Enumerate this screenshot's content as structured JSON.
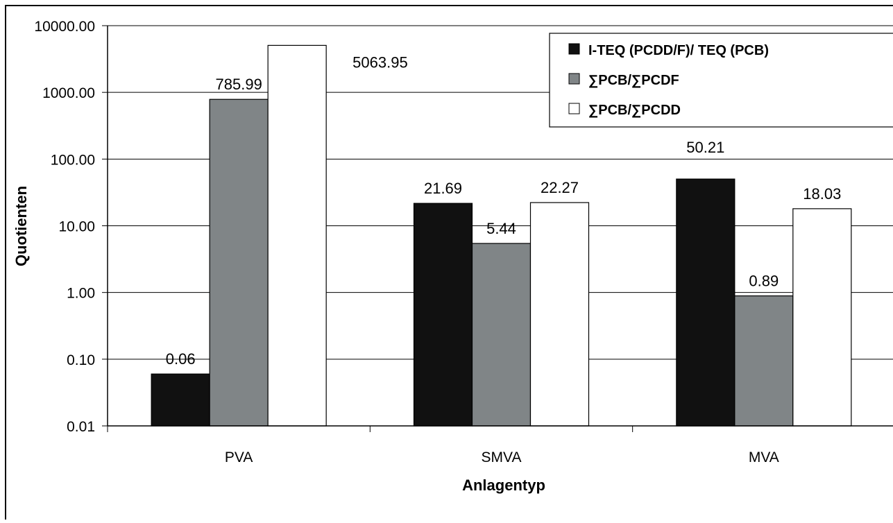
{
  "chart_data": {
    "type": "bar",
    "scale": "log",
    "title": "",
    "xlabel": "Anlagentyp",
    "ylabel": "Quotienten",
    "ylim": [
      0.01,
      10000
    ],
    "yticks": [
      "10000.00",
      "1000.00",
      "100.00",
      "10.00",
      "1.00",
      "0.10",
      "0.01"
    ],
    "categories": [
      "PVA",
      "SMVA",
      "MVA"
    ],
    "series": [
      {
        "name": "I-TEQ (PCDD/F)/ TEQ (PCB)",
        "color": "#111111",
        "values": [
          0.06,
          21.69,
          50.21
        ],
        "labels": [
          "0.06",
          "21.69",
          "50.21"
        ]
      },
      {
        "name": "∑PCB/∑PCDF",
        "color": "#808587",
        "values": [
          785.99,
          5.44,
          0.89
        ],
        "labels": [
          "785.99",
          "5.44",
          "0.89"
        ]
      },
      {
        "name": "∑PCB/∑PCDD",
        "color": "#ffffff",
        "values": [
          5063.95,
          22.27,
          18.03
        ],
        "labels": [
          "5063.95",
          "22.27",
          "18.03"
        ]
      }
    ],
    "grid": true,
    "legend_position": "top-right"
  }
}
